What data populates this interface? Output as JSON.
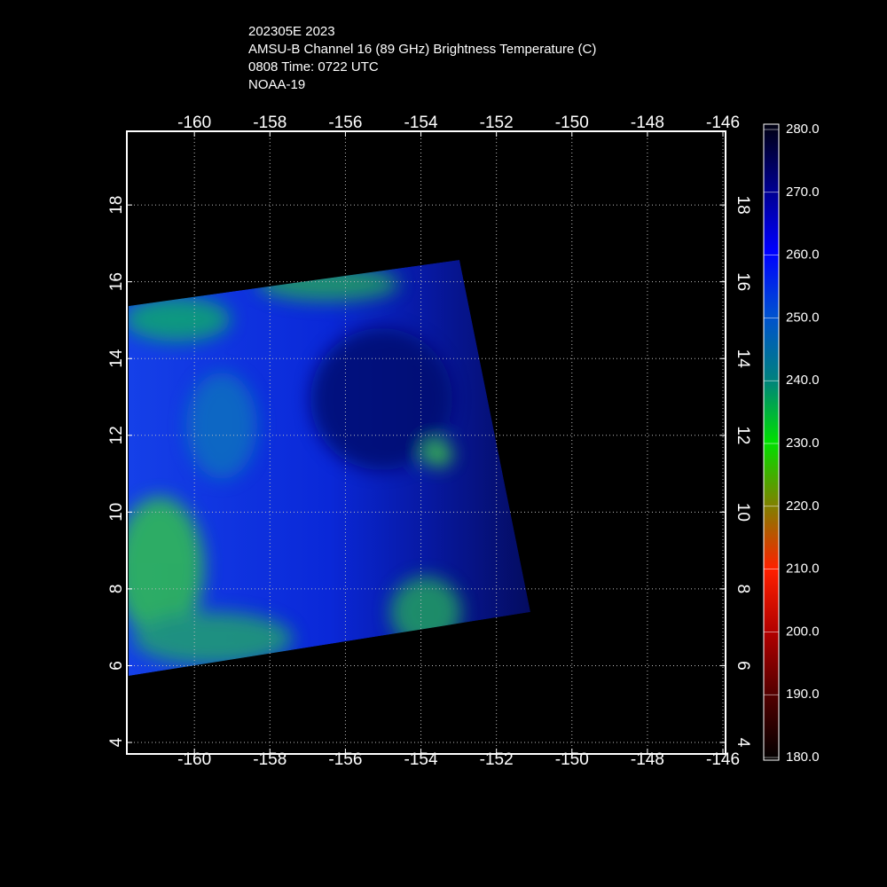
{
  "header": {
    "lines": [
      "202305E 2023",
      "AMSU-B Channel 16 (89 GHz) Brightness Temperature (C)",
      "0808 Time: 0722 UTC",
      "NOAA-19"
    ]
  },
  "map": {
    "xlim": [
      -161.79,
      -145.93
    ],
    "ylim": [
      3.7,
      19.92
    ],
    "xticks": [
      -160,
      -158,
      -156,
      -154,
      -152,
      -150,
      -148,
      -146
    ],
    "yticks": [
      4,
      6,
      8,
      10,
      12,
      14,
      16,
      18
    ],
    "grid": true
  },
  "colorbar": {
    "lim": [
      180,
      280
    ],
    "ticks": [
      {
        "value": 280,
        "label": "280.0"
      },
      {
        "value": 270,
        "label": "270.0"
      },
      {
        "value": 260,
        "label": "260.0"
      },
      {
        "value": 250,
        "label": "250.0"
      },
      {
        "value": 240,
        "label": "240.0"
      },
      {
        "value": 230,
        "label": "230.0"
      },
      {
        "value": 220,
        "label": "220.0"
      },
      {
        "value": 210,
        "label": "210.0"
      },
      {
        "value": 200,
        "label": "200.0"
      },
      {
        "value": 190,
        "label": "190.0"
      },
      {
        "value": 180,
        "label": "180.0"
      }
    ]
  }
}
